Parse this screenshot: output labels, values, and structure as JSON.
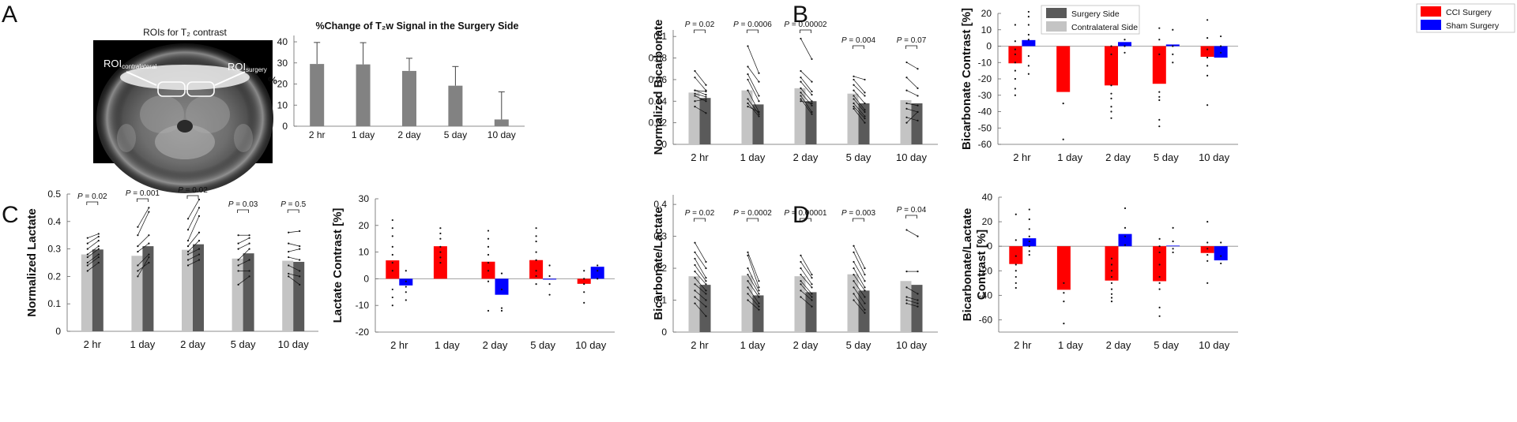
{
  "panel_labels": {
    "a": "A",
    "b": "B",
    "c": "C",
    "d": "D"
  },
  "mri": {
    "title": "ROIs for T₂ contrast",
    "roi_left_main": "ROI",
    "roi_left_sub": "contralateral",
    "roi_right_main": "ROI",
    "roi_right_sub": "surgery"
  },
  "legend": {
    "surgery": "Surgery Side",
    "contralateral": "Contralateral Side",
    "cci": "CCI Surgery",
    "sham": "Sham Surgery"
  },
  "colors": {
    "surgery": "#5a5a5a",
    "contralateral": "#c4c4c4",
    "cci": "#ff0000",
    "sham": "#0000ff",
    "a_bar": "#828282"
  },
  "chart_data": [
    {
      "id": "A",
      "type": "bar",
      "title": "%Change of T₂w Signal in the Surgery Side",
      "ylabel": "%",
      "categories": [
        "2 hr",
        "1 day",
        "2 day",
        "5 day",
        "10 day"
      ],
      "values": [
        29.5,
        29.3,
        26.2,
        19.2,
        3.2
      ],
      "error_upper": [
        39.7,
        39.6,
        32.2,
        28.3,
        16.3
      ],
      "ylim": [
        0,
        43
      ],
      "yticks": [
        0,
        10,
        20,
        30,
        40
      ]
    },
    {
      "id": "B1",
      "type": "bar",
      "ylabel": "Normalized Bicarbonate",
      "categories": [
        "2 hr",
        "1 day",
        "2 day",
        "5 day",
        "10 day"
      ],
      "series": [
        {
          "name": "Contralateral Side",
          "values": [
            0.048,
            0.05,
            0.052,
            0.047,
            0.041
          ]
        },
        {
          "name": "Surgery Side",
          "values": [
            0.043,
            0.037,
            0.04,
            0.038,
            0.038
          ]
        }
      ],
      "ylim": [
        0,
        0.106
      ],
      "yticks": [
        0,
        0.02,
        0.04,
        0.06,
        0.08,
        0.1
      ],
      "ytick_labels": [
        "0",
        "0.02",
        "0.04",
        "0.06",
        "0.08",
        "0.1"
      ],
      "p_values": [
        "P = 0.02",
        "P = 0.0006",
        "P = 0.00002",
        "P = 0.004",
        "P = 0.07"
      ],
      "paired": [
        [
          [
            0.068,
            0.055
          ],
          [
            0.062,
            0.05
          ],
          [
            0.05,
            0.046
          ],
          [
            0.047,
            0.044
          ],
          [
            0.045,
            0.04
          ],
          [
            0.04,
            0.042
          ],
          [
            0.035,
            0.029
          ],
          [
            0.05,
            0.049
          ]
        ],
        [
          [
            0.091,
            0.066
          ],
          [
            0.072,
            0.058
          ],
          [
            0.065,
            0.045
          ],
          [
            0.06,
            0.04
          ],
          [
            0.05,
            0.03
          ],
          [
            0.042,
            0.028
          ],
          [
            0.038,
            0.026
          ],
          [
            0.035,
            0.03
          ]
        ],
        [
          [
            0.098,
            0.079
          ],
          [
            0.068,
            0.058
          ],
          [
            0.062,
            0.049
          ],
          [
            0.058,
            0.046
          ],
          [
            0.052,
            0.04
          ],
          [
            0.048,
            0.036
          ],
          [
            0.045,
            0.03
          ],
          [
            0.042,
            0.028
          ],
          [
            0.04,
            0.038
          ]
        ],
        [
          [
            0.063,
            0.06
          ],
          [
            0.06,
            0.048
          ],
          [
            0.055,
            0.045
          ],
          [
            0.05,
            0.038
          ],
          [
            0.045,
            0.032
          ],
          [
            0.042,
            0.03
          ],
          [
            0.038,
            0.026
          ],
          [
            0.035,
            0.024
          ],
          [
            0.033,
            0.02
          ]
        ],
        [
          [
            0.076,
            0.07
          ],
          [
            0.062,
            0.052
          ],
          [
            0.05,
            0.045
          ],
          [
            0.038,
            0.036
          ],
          [
            0.033,
            0.03
          ],
          [
            0.025,
            0.022
          ],
          [
            0.02,
            0.03
          ]
        ]
      ]
    },
    {
      "id": "B2",
      "type": "bar",
      "ylabel": "Bicarbonate Contrast [%]",
      "categories": [
        "2 hr",
        "1 day",
        "2 day",
        "5 day",
        "10 day"
      ],
      "series": [
        {
          "name": "CCI Surgery",
          "values": [
            -10.5,
            -28,
            -24,
            -23,
            -6.5
          ]
        },
        {
          "name": "Sham Surgery",
          "values": [
            3.7,
            null,
            2.5,
            1,
            -7
          ]
        }
      ],
      "ylim": [
        -60,
        20
      ],
      "yticks": [
        -60,
        -50,
        -40,
        -30,
        -20,
        -10,
        0,
        10,
        20
      ],
      "points_cci": [
        [
          13,
          3,
          -2,
          -5,
          -10,
          -15,
          -20,
          -26,
          -30
        ],
        [
          -35,
          -57
        ],
        [
          -24,
          -29,
          -32,
          -37,
          -40,
          -44,
          0,
          -5
        ],
        [
          11,
          4,
          -5,
          -28,
          -31,
          -33,
          -45,
          -49
        ],
        [
          16,
          5,
          -2,
          -7,
          -12,
          -18,
          -36
        ]
      ],
      "points_sham": [
        [
          21,
          18,
          13,
          7,
          4,
          -6,
          -12,
          -17
        ],
        [],
        [
          20,
          4,
          0,
          -4
        ],
        [
          10,
          0,
          -5,
          -10
        ],
        [
          6,
          0,
          -4
        ]
      ]
    },
    {
      "id": "C1",
      "type": "bar",
      "ylabel": "Normalized Lactate",
      "categories": [
        "2 hr",
        "1 day",
        "2 day",
        "5 day",
        "10 day"
      ],
      "series": [
        {
          "name": "Contralateral Side",
          "values": [
            0.28,
            0.275,
            0.297,
            0.265,
            0.257
          ]
        },
        {
          "name": "Surgery Side",
          "values": [
            0.298,
            0.31,
            0.317,
            0.284,
            0.253
          ]
        }
      ],
      "ylim": [
        0,
        0.5
      ],
      "yticks": [
        0,
        0.1,
        0.2,
        0.3,
        0.4,
        0.5
      ],
      "ytick_labels": [
        "0",
        "0.1",
        "0.2",
        "0.3",
        "0.4",
        "0.5"
      ],
      "p_values": [
        "P = 0.02",
        "P = 0.001",
        "P = 0.02",
        "P = 0.03",
        "P = 0.5"
      ],
      "paired": [
        [
          [
            0.34,
            0.355
          ],
          [
            0.32,
            0.345
          ],
          [
            0.3,
            0.33
          ],
          [
            0.28,
            0.31
          ],
          [
            0.27,
            0.3
          ],
          [
            0.25,
            0.28
          ],
          [
            0.24,
            0.27
          ],
          [
            0.22,
            0.25
          ]
        ],
        [
          [
            0.38,
            0.45
          ],
          [
            0.35,
            0.435
          ],
          [
            0.31,
            0.35
          ],
          [
            0.29,
            0.32
          ],
          [
            0.24,
            0.28
          ],
          [
            0.22,
            0.25
          ],
          [
            0.2,
            0.27
          ]
        ],
        [
          [
            0.41,
            0.48
          ],
          [
            0.37,
            0.45
          ],
          [
            0.33,
            0.42
          ],
          [
            0.31,
            0.36
          ],
          [
            0.29,
            0.33
          ],
          [
            0.28,
            0.3
          ],
          [
            0.26,
            0.28
          ],
          [
            0.24,
            0.26
          ]
        ],
        [
          [
            0.35,
            0.35
          ],
          [
            0.32,
            0.34
          ],
          [
            0.3,
            0.32
          ],
          [
            0.26,
            0.3
          ],
          [
            0.24,
            0.26
          ],
          [
            0.22,
            0.22
          ],
          [
            0.17,
            0.2
          ]
        ],
        [
          [
            0.36,
            0.365
          ],
          [
            0.32,
            0.31
          ],
          [
            0.29,
            0.3
          ],
          [
            0.27,
            0.26
          ],
          [
            0.24,
            0.22
          ],
          [
            0.21,
            0.2
          ],
          [
            0.2,
            0.17
          ]
        ]
      ]
    },
    {
      "id": "C2",
      "type": "bar",
      "ylabel": "Lactate Contrast [%]",
      "categories": [
        "2 hr",
        "1 day",
        "2 day",
        "5 day",
        "10 day"
      ],
      "series": [
        {
          "name": "CCI Surgery",
          "values": [
            6.9,
            12.2,
            6.4,
            7,
            -1.9
          ]
        },
        {
          "name": "Sham Surgery",
          "values": [
            -2.5,
            null,
            -6,
            -0.3,
            4.5
          ]
        }
      ],
      "ylim": [
        -20,
        30
      ],
      "yticks": [
        -20,
        -10,
        0,
        10,
        20,
        30
      ],
      "points_cci": [
        [
          22,
          19,
          16,
          12,
          9,
          6,
          3,
          -4,
          -7,
          -10
        ],
        [
          19,
          17,
          15,
          12,
          10,
          8,
          6
        ],
        [
          18,
          15,
          12,
          9,
          6,
          3,
          -1,
          -12
        ],
        [
          19,
          16,
          14,
          10,
          7,
          3,
          1,
          -2
        ],
        [
          3,
          0,
          -2,
          -5,
          -9
        ]
      ],
      "points_sham": [
        [
          3,
          -1,
          -3,
          -5,
          -8
        ],
        [],
        [
          2,
          -4,
          -11,
          -12
        ],
        [
          5,
          1,
          -2,
          -6
        ],
        [
          5,
          3,
          0
        ]
      ]
    },
    {
      "id": "D1",
      "type": "bar",
      "ylabel": "Bicarbonate/Lactate",
      "categories": [
        "2 hr",
        "1 day",
        "2 day",
        "5 day",
        "10 day"
      ],
      "series": [
        {
          "name": "Contralateral Side",
          "values": [
            0.175,
            0.177,
            0.175,
            0.181,
            0.16
          ]
        },
        {
          "name": "Surgery Side",
          "values": [
            0.148,
            0.115,
            0.125,
            0.13,
            0.148
          ]
        }
      ],
      "ylim": [
        0,
        0.43
      ],
      "yticks": [
        0,
        0.1,
        0.2,
        0.3,
        0.4
      ],
      "ytick_labels": [
        "0",
        "0.1",
        "0.2",
        "0.3",
        "0.4"
      ],
      "p_values": [
        "P = 0.02",
        "P = 0.0002",
        "P = 0.00001",
        "P = 0.003",
        "P = 0.04"
      ],
      "paired": [
        [
          [
            0.28,
            0.22
          ],
          [
            0.25,
            0.2
          ],
          [
            0.23,
            0.17
          ],
          [
            0.21,
            0.16
          ],
          [
            0.19,
            0.15
          ],
          [
            0.17,
            0.13
          ],
          [
            0.15,
            0.12
          ],
          [
            0.13,
            0.1
          ],
          [
            0.11,
            0.08
          ],
          [
            0.09,
            0.05
          ]
        ],
        [
          [
            0.25,
            0.16
          ],
          [
            0.24,
            0.14
          ],
          [
            0.2,
            0.13
          ],
          [
            0.18,
            0.12
          ],
          [
            0.16,
            0.11
          ],
          [
            0.14,
            0.09
          ],
          [
            0.12,
            0.08
          ],
          [
            0.1,
            0.07
          ]
        ],
        [
          [
            0.24,
            0.18
          ],
          [
            0.22,
            0.17
          ],
          [
            0.2,
            0.15
          ],
          [
            0.18,
            0.14
          ],
          [
            0.16,
            0.12
          ],
          [
            0.15,
            0.11
          ],
          [
            0.13,
            0.1
          ],
          [
            0.11,
            0.08
          ]
        ],
        [
          [
            0.27,
            0.2
          ],
          [
            0.25,
            0.18
          ],
          [
            0.22,
            0.16
          ],
          [
            0.2,
            0.14
          ],
          [
            0.18,
            0.13
          ],
          [
            0.16,
            0.11
          ],
          [
            0.14,
            0.09
          ],
          [
            0.12,
            0.07
          ],
          [
            0.1,
            0.06
          ]
        ],
        [
          [
            0.32,
            0.3
          ],
          [
            0.19,
            0.19
          ],
          [
            0.14,
            0.12
          ],
          [
            0.11,
            0.1
          ],
          [
            0.1,
            0.09
          ],
          [
            0.09,
            0.08
          ]
        ]
      ]
    },
    {
      "id": "D2",
      "type": "bar",
      "ylabel": "Bicarbonate/Lactate Contrast [%]",
      "categories": [
        "2 hr",
        "1 day",
        "2 day",
        "5 day",
        "10 day"
      ],
      "series": [
        {
          "name": "CCI Surgery",
          "values": [
            -14.5,
            -35.5,
            -28,
            -28.5,
            -5.5
          ]
        },
        {
          "name": "Sham Surgery",
          "values": [
            6.5,
            null,
            10,
            0.5,
            -11.5
          ]
        }
      ],
      "ylim": [
        -70,
        40
      ],
      "yticks": [
        -60,
        -40,
        -20,
        0,
        20,
        40
      ],
      "points_cci": [
        [
          26,
          5,
          -8,
          -15,
          -20,
          -25,
          -30,
          -34
        ],
        [
          -45,
          -63,
          -38,
          -30
        ],
        [
          -10,
          -15,
          -20,
          -25,
          -30,
          -35,
          -39,
          -42,
          -45
        ],
        [
          6,
          0,
          -5,
          -15,
          -25,
          -30,
          -35,
          -50,
          -57
        ],
        [
          20,
          3,
          -2,
          -7,
          -12,
          -30
        ]
      ],
      "points_sham": [
        [
          30,
          22,
          14,
          8,
          4,
          0,
          -4,
          -7
        ],
        [],
        [
          31,
          15,
          8,
          1
        ],
        [
          15,
          4,
          -2,
          -5
        ],
        [
          3,
          -8,
          -14
        ]
      ]
    }
  ]
}
